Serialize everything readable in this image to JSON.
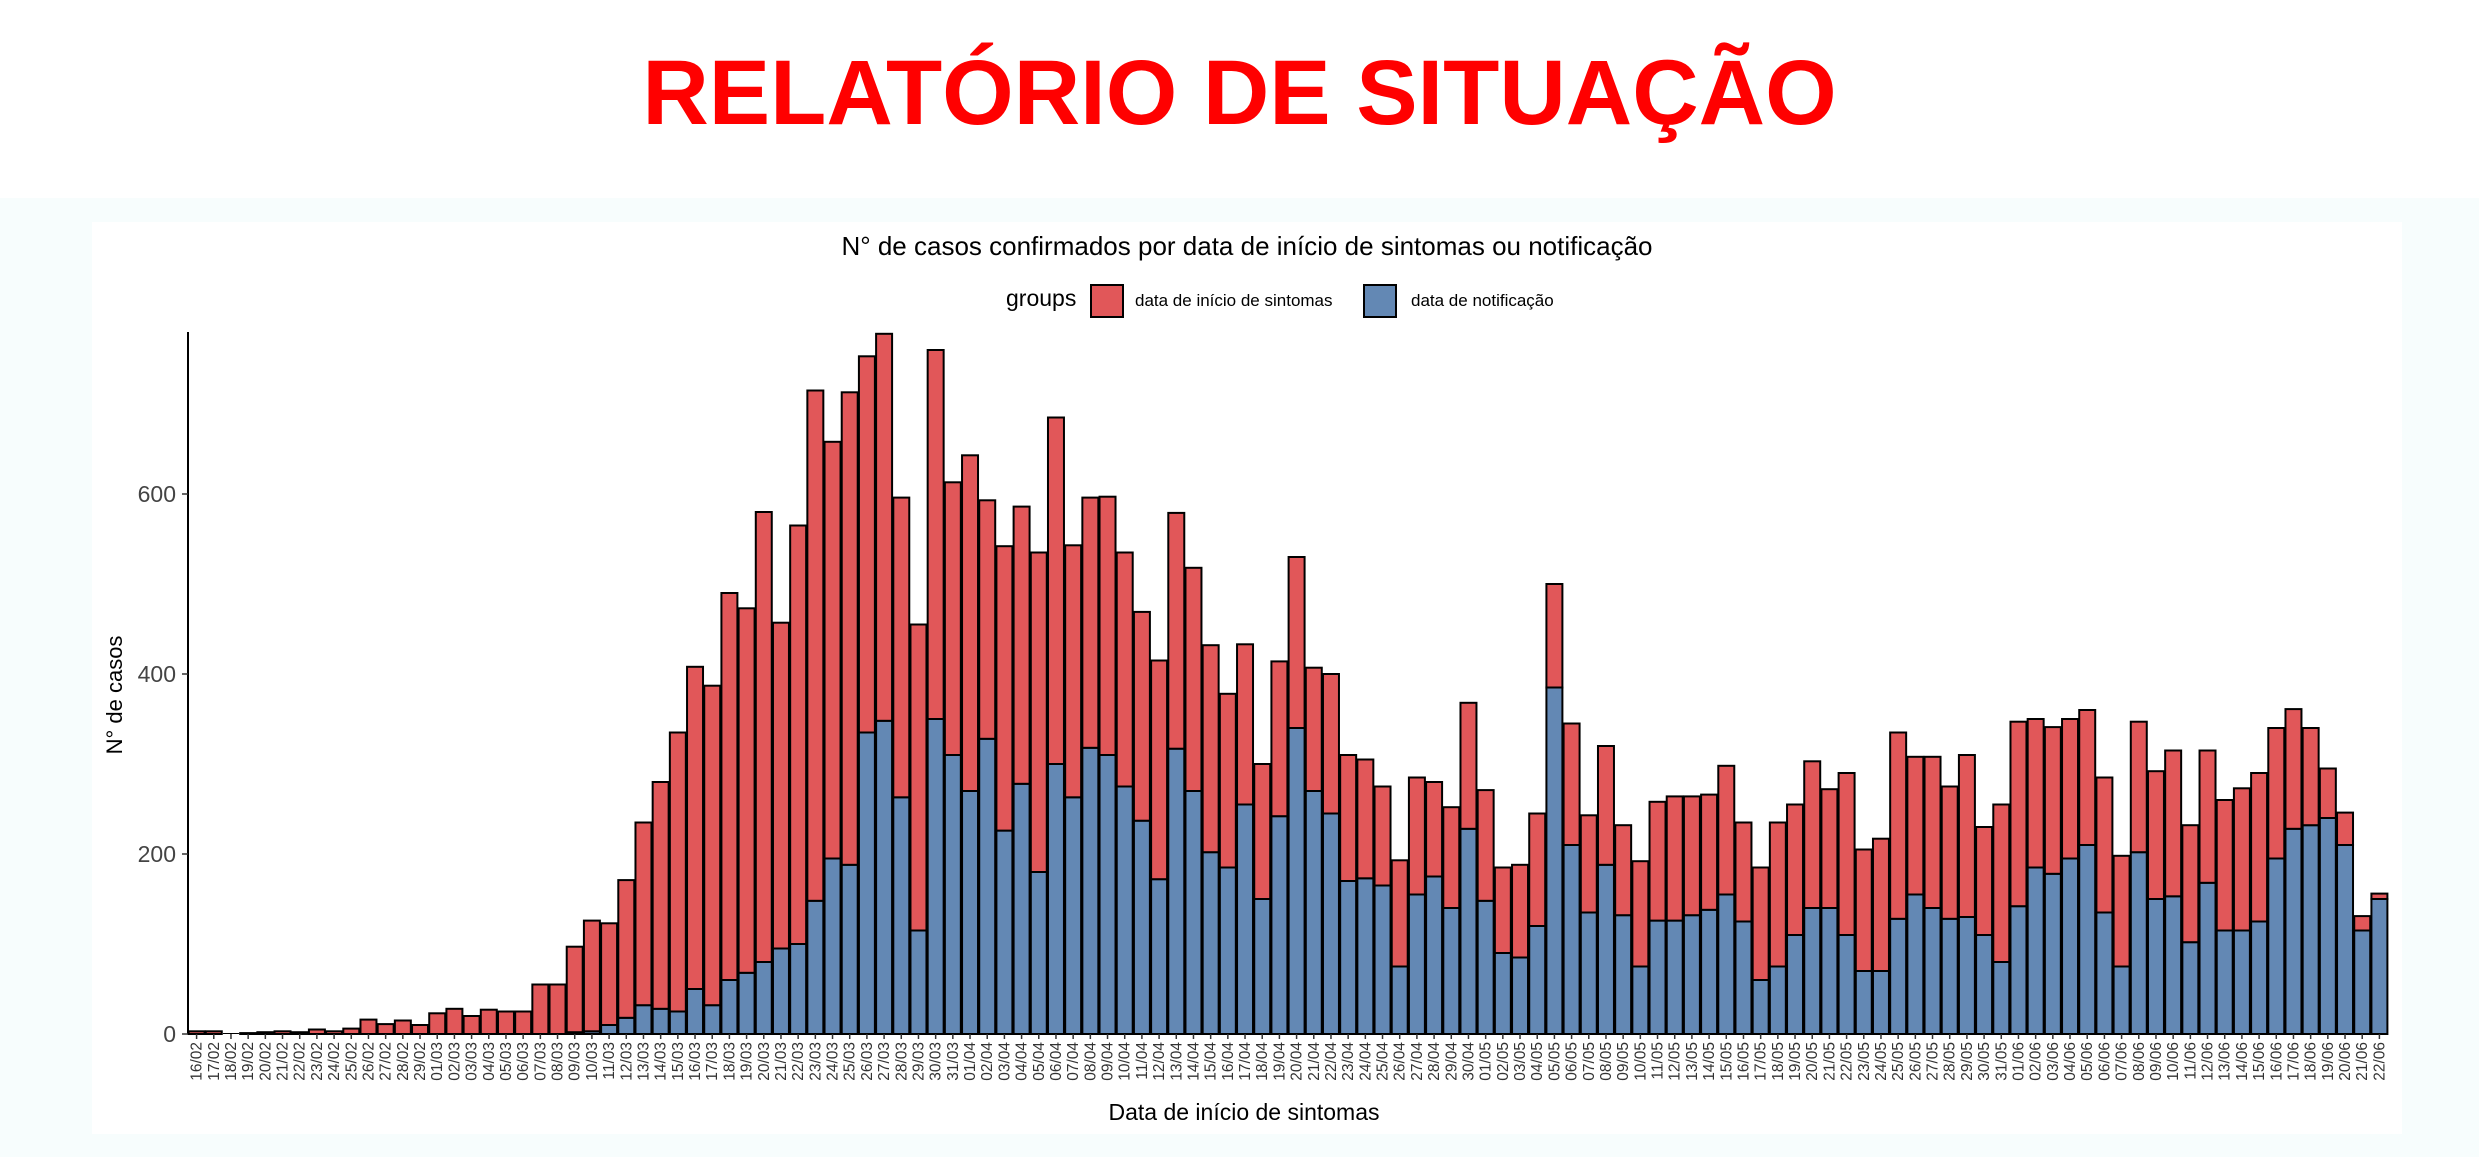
{
  "header": {
    "title": "RELATÓRIO DE SITUAÇÃO"
  },
  "colors": {
    "title": "#ff0000",
    "onset": "#e15759",
    "notification": "#6388b4",
    "outline": "#000000"
  },
  "chart_data": {
    "type": "bar",
    "stacked": true,
    "title": "N° de casos confirmados por data de início de sintomas ou notificação",
    "xlabel": "Data de início de sintomas",
    "ylabel": "N° de casos",
    "ylim": [
      0,
      780
    ],
    "yticks": [
      0,
      200,
      400,
      600
    ],
    "grid": false,
    "legend": {
      "title": "groups",
      "position": "top"
    },
    "categories": [
      "16/02",
      "17/02",
      "18/02",
      "19/02",
      "20/02",
      "21/02",
      "22/02",
      "23/02",
      "24/02",
      "25/02",
      "26/02",
      "27/02",
      "28/02",
      "29/02",
      "01/03",
      "02/03",
      "03/03",
      "04/03",
      "05/03",
      "06/03",
      "07/03",
      "08/03",
      "09/03",
      "10/03",
      "11/03",
      "12/03",
      "13/03",
      "14/03",
      "15/03",
      "16/03",
      "17/03",
      "18/03",
      "19/03",
      "20/03",
      "21/03",
      "22/03",
      "23/03",
      "24/03",
      "25/03",
      "26/03",
      "27/03",
      "28/03",
      "29/03",
      "30/03",
      "31/03",
      "01/04",
      "02/04",
      "03/04",
      "04/04",
      "05/04",
      "06/04",
      "07/04",
      "08/04",
      "09/04",
      "10/04",
      "11/04",
      "12/04",
      "13/04",
      "14/04",
      "15/04",
      "16/04",
      "17/04",
      "18/04",
      "19/04",
      "20/04",
      "21/04",
      "22/04",
      "23/04",
      "24/04",
      "25/04",
      "26/04",
      "27/04",
      "28/04",
      "29/04",
      "30/04",
      "01/05",
      "02/05",
      "03/05",
      "04/05",
      "05/05",
      "06/05",
      "07/05",
      "08/05",
      "09/05",
      "10/05",
      "11/05",
      "12/05",
      "13/05",
      "14/05",
      "15/05",
      "16/05",
      "17/05",
      "18/05",
      "19/05",
      "20/05",
      "21/05",
      "22/05",
      "23/05",
      "24/05",
      "25/05",
      "26/05",
      "27/05",
      "28/05",
      "29/05",
      "30/05",
      "31/05",
      "01/06",
      "02/06",
      "03/06",
      "04/06",
      "05/06",
      "06/06",
      "07/06",
      "08/06",
      "09/06",
      "10/06",
      "11/06",
      "12/06",
      "13/06",
      "14/06",
      "15/06",
      "16/06",
      "17/06",
      "18/06",
      "19/06",
      "20/06",
      "21/06",
      "22/06"
    ],
    "series": [
      {
        "name": "data de notificação",
        "values": [
          0,
          0,
          0,
          0,
          0,
          0,
          0,
          0,
          0,
          0,
          0,
          0,
          0,
          0,
          0,
          0,
          0,
          0,
          0,
          0,
          0,
          0,
          2,
          3,
          10,
          18,
          32,
          28,
          25,
          50,
          32,
          60,
          68,
          80,
          95,
          100,
          148,
          195,
          188,
          335,
          348,
          263,
          115,
          350,
          310,
          270,
          328,
          226,
          278,
          180,
          300,
          263,
          318,
          310,
          275,
          237,
          172,
          317,
          270,
          202,
          185,
          255,
          150,
          242,
          340,
          270,
          245,
          170,
          173,
          165,
          75,
          155,
          175,
          140,
          228,
          148,
          90,
          85,
          120,
          385,
          210,
          135,
          188,
          132,
          75,
          126,
          126,
          132,
          138,
          155,
          125,
          60,
          75,
          110,
          140,
          140,
          110,
          70,
          70,
          128,
          155,
          140,
          128,
          130,
          110,
          80,
          142,
          185,
          178,
          195,
          210,
          135,
          75,
          202,
          150,
          153,
          102,
          168,
          115,
          115,
          125,
          195,
          228,
          232,
          240,
          210,
          115,
          150
        ]
      },
      {
        "name": "data de início de sintomas",
        "values": [
          3,
          3,
          0,
          1,
          2,
          3,
          2,
          5,
          3,
          6,
          16,
          11,
          15,
          10,
          23,
          28,
          20,
          27,
          25,
          25,
          55,
          55,
          95,
          123,
          113,
          153,
          203,
          252,
          310,
          358,
          355,
          430,
          405,
          500,
          362,
          465,
          567,
          463,
          525,
          418,
          430,
          333,
          340,
          410,
          303,
          373,
          265,
          316,
          308,
          355,
          385,
          280,
          278,
          287,
          260,
          232,
          243,
          262,
          248,
          230,
          193,
          178,
          150,
          172,
          190,
          137,
          155,
          140,
          132,
          110,
          118,
          130,
          105,
          112,
          140,
          123,
          95,
          103,
          125,
          115,
          135,
          108,
          132,
          100,
          117,
          132,
          138,
          132,
          128,
          143,
          110,
          125,
          160,
          145,
          163,
          132,
          180,
          135,
          147,
          207,
          153,
          168,
          147,
          180,
          120,
          175,
          205,
          165,
          163,
          155,
          150,
          150,
          123,
          145,
          142,
          162,
          130,
          147,
          145,
          158,
          165,
          145,
          133,
          108,
          55,
          36,
          16,
          6
        ]
      }
    ]
  }
}
